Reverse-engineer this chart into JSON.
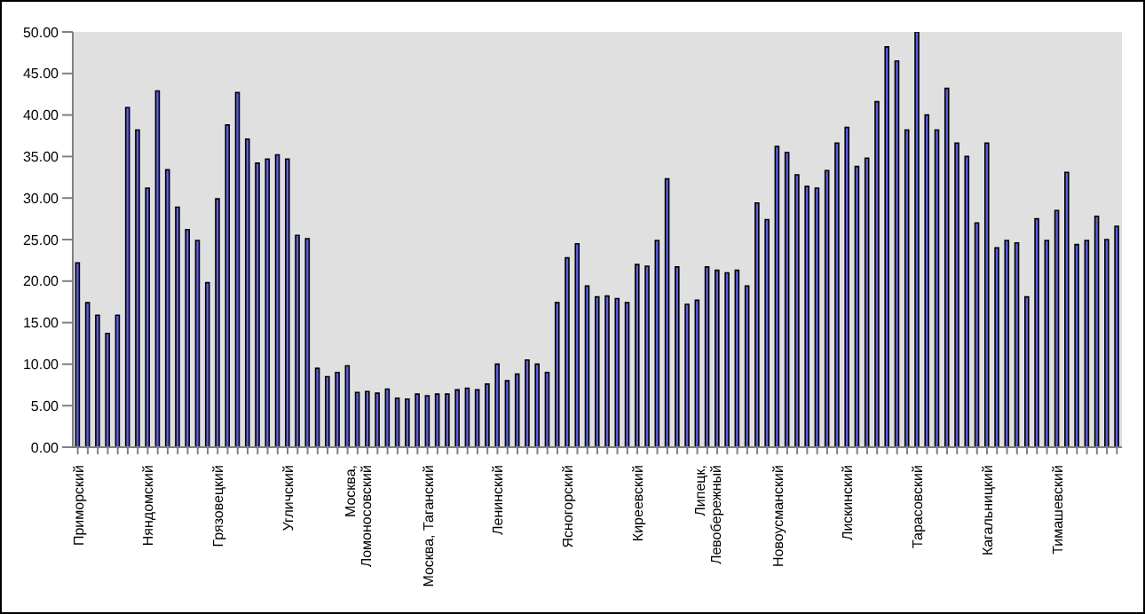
{
  "chart_data": {
    "type": "bar",
    "categories": [
      "Приморский",
      null,
      null,
      null,
      null,
      null,
      null,
      "Няндомский",
      null,
      null,
      null,
      null,
      null,
      null,
      "Грязовецкий",
      null,
      null,
      null,
      null,
      null,
      null,
      "Угличский",
      null,
      null,
      null,
      null,
      null,
      null,
      "Москва, Ломоносовский",
      null,
      null,
      null,
      null,
      null,
      null,
      "Москва, Таганский",
      null,
      null,
      null,
      null,
      null,
      null,
      "Ленинский",
      null,
      null,
      null,
      null,
      null,
      null,
      "Ясногорский",
      null,
      null,
      null,
      null,
      null,
      null,
      "Киреевский",
      null,
      null,
      null,
      null,
      null,
      null,
      "Липецк, Левобережный",
      null,
      null,
      null,
      null,
      null,
      null,
      "Новоусманский",
      null,
      null,
      null,
      null,
      null,
      null,
      "Лискинский",
      null,
      null,
      null,
      null,
      null,
      null,
      "Тарасовский",
      null,
      null,
      null,
      null,
      null,
      null,
      "Кагальницкий",
      null,
      null,
      null,
      null,
      null,
      null,
      "Тимашевский",
      null,
      null,
      null,
      null,
      null,
      null
    ],
    "values": [
      22.2,
      17.4,
      15.9,
      13.7,
      15.9,
      40.9,
      38.2,
      31.2,
      42.9,
      33.4,
      28.9,
      26.2,
      24.9,
      19.8,
      29.9,
      38.8,
      42.7,
      37.1,
      34.2,
      34.7,
      35.2,
      34.7,
      25.5,
      25.1,
      9.5,
      8.5,
      9.0,
      9.8,
      6.6,
      6.7,
      6.5,
      7.0,
      5.9,
      5.8,
      6.4,
      6.2,
      6.4,
      6.4,
      6.9,
      7.1,
      6.9,
      7.6,
      10.0,
      8.0,
      8.8,
      10.5,
      10.0,
      9.0,
      17.4,
      22.8,
      24.5,
      19.4,
      18.1,
      18.2,
      17.9,
      17.4,
      22.0,
      21.8,
      24.9,
      32.3,
      21.7,
      17.2,
      17.7,
      21.7,
      21.3,
      21.0,
      21.3,
      19.4,
      29.4,
      27.4,
      36.2,
      35.5,
      32.8,
      31.4,
      31.2,
      33.3,
      36.6,
      38.5,
      33.8,
      34.8,
      41.6,
      48.2,
      46.5,
      38.2,
      50.0,
      40.0,
      38.2,
      43.2,
      36.6,
      35.0,
      27.0,
      36.6,
      24.0,
      24.9,
      24.6,
      18.1,
      27.5,
      24.9,
      28.5,
      33.1,
      24.4,
      24.9,
      27.8,
      25.0,
      26.6
    ],
    "color": "#6060e0",
    "ylim": [
      0,
      50
    ],
    "yticks": [
      {
        "value": 0,
        "label": "0.00"
      },
      {
        "value": 5,
        "label": "5.00"
      },
      {
        "value": 10,
        "label": "10.00"
      },
      {
        "value": 15,
        "label": "15.00"
      },
      {
        "value": 20,
        "label": "20.00"
      },
      {
        "value": 25,
        "label": "25.00"
      },
      {
        "value": 30,
        "label": "30.00"
      },
      {
        "value": 35,
        "label": "35.00"
      },
      {
        "value": 40,
        "label": "40.00"
      },
      {
        "value": 45,
        "label": "45.00"
      },
      {
        "value": 50,
        "label": "50.00"
      }
    ]
  }
}
